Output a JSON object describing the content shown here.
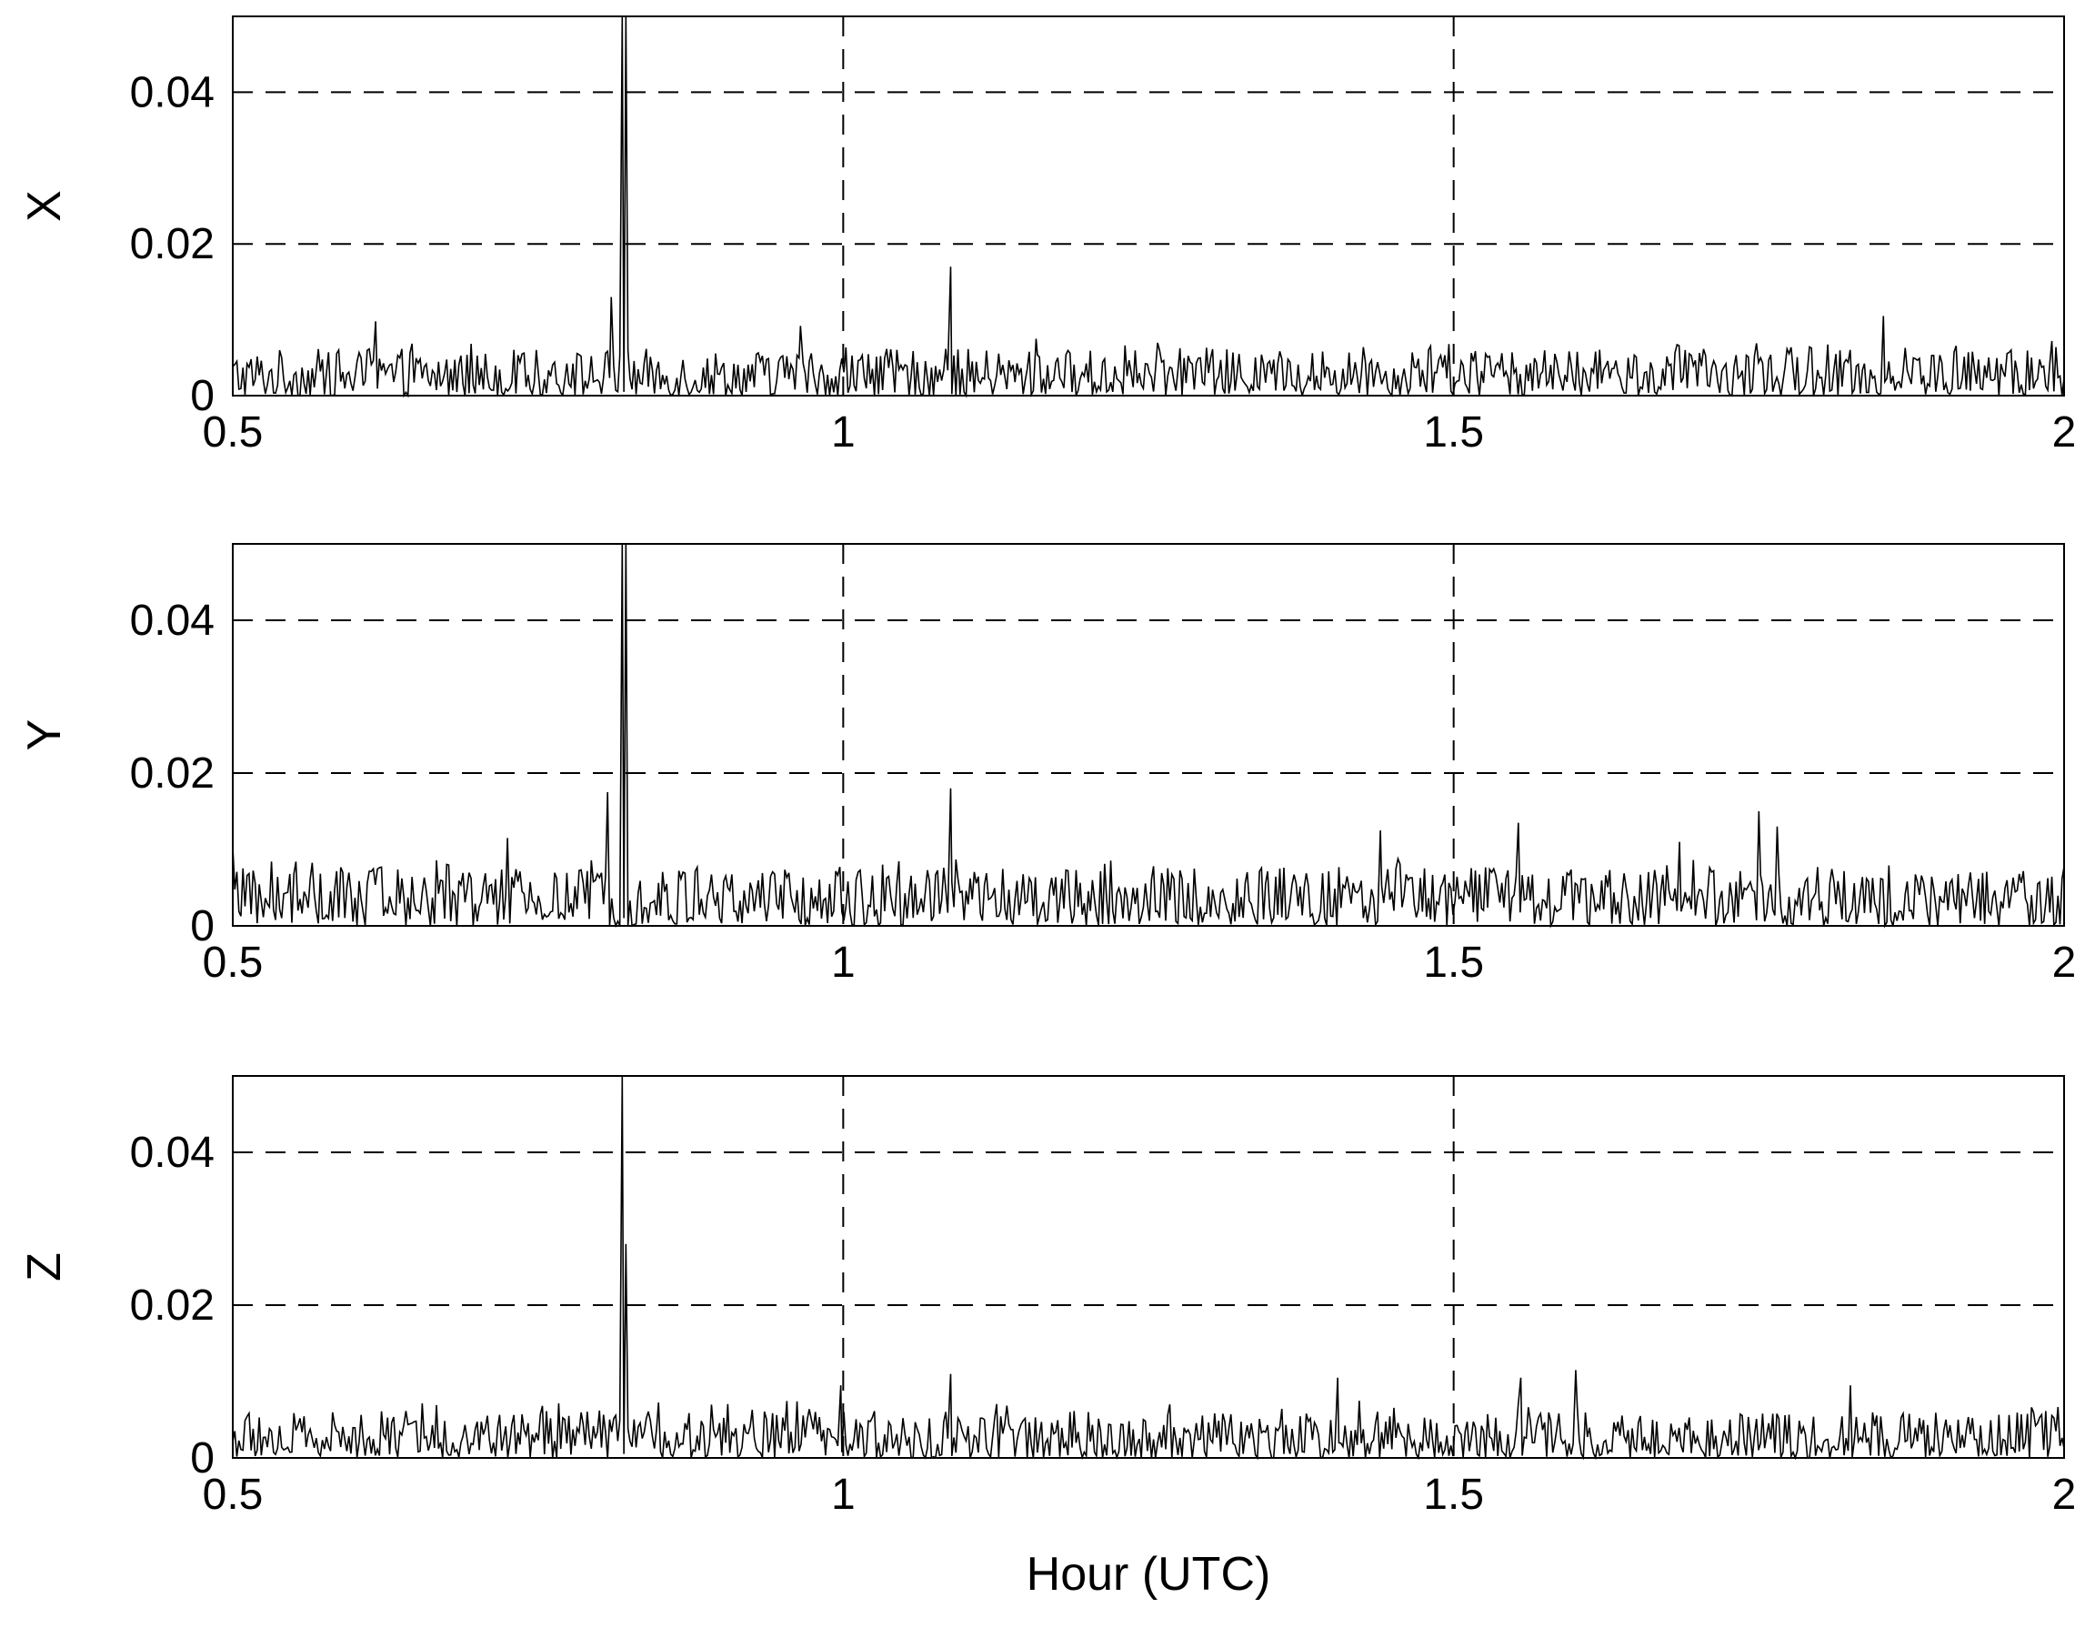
{
  "chart_data": {
    "type": "line",
    "xlabel": "Hour (UTC)",
    "xlim": [
      0.5,
      2
    ],
    "x_ticks": [
      0.5,
      1,
      1.5,
      2
    ],
    "x_tick_labels": [
      "0.5",
      "1",
      "1.5",
      "2"
    ],
    "grid": "dashed",
    "line_color": "#000000",
    "panels": [
      {
        "ylabel": "X",
        "ylim": [
          0,
          0.05
        ],
        "y_ticks": [
          0,
          0.02,
          0.04
        ],
        "y_tick_labels": [
          "0",
          "0.02",
          "0.04"
        ],
        "series": {
          "baseline_mean": 0.0028,
          "baseline_peak": 0.007,
          "spikes": [
            {
              "x": 0.819,
              "y": 0.05
            },
            {
              "x": 0.822,
              "y": 0.05
            },
            {
              "x": 0.81,
              "y": 0.013
            },
            {
              "x": 0.617,
              "y": 0.0098
            },
            {
              "x": 0.965,
              "y": 0.0092
            },
            {
              "x": 1.088,
              "y": 0.017
            },
            {
              "x": 1.158,
              "y": 0.0075
            },
            {
              "x": 1.852,
              "y": 0.0105
            },
            {
              "x": 1.99,
              "y": 0.0072
            }
          ]
        }
      },
      {
        "ylabel": "Y",
        "ylim": [
          0,
          0.05
        ],
        "y_ticks": [
          0,
          0.02,
          0.04
        ],
        "y_tick_labels": [
          "0",
          "0.02",
          "0.04"
        ],
        "series": {
          "baseline_mean": 0.0035,
          "baseline_peak": 0.009,
          "spikes": [
            {
              "x": 0.819,
              "y": 0.05
            },
            {
              "x": 0.822,
              "y": 0.05
            },
            {
              "x": 0.807,
              "y": 0.0175
            },
            {
              "x": 0.5,
              "y": 0.0103
            },
            {
              "x": 0.725,
              "y": 0.0115
            },
            {
              "x": 1.088,
              "y": 0.018
            },
            {
              "x": 1.44,
              "y": 0.0125
            },
            {
              "x": 1.553,
              "y": 0.0135
            },
            {
              "x": 1.685,
              "y": 0.011
            },
            {
              "x": 1.75,
              "y": 0.015
            },
            {
              "x": 1.765,
              "y": 0.013
            }
          ]
        }
      },
      {
        "ylabel": "Z",
        "ylim": [
          0,
          0.05
        ],
        "y_ticks": [
          0,
          0.02,
          0.04
        ],
        "y_tick_labels": [
          "0",
          "0.02",
          "0.04"
        ],
        "series": {
          "baseline_mean": 0.0028,
          "baseline_peak": 0.0075,
          "spikes": [
            {
              "x": 0.819,
              "y": 0.05
            },
            {
              "x": 0.822,
              "y": 0.028
            },
            {
              "x": 0.998,
              "y": 0.0095
            },
            {
              "x": 1.088,
              "y": 0.011
            },
            {
              "x": 1.405,
              "y": 0.0105
            },
            {
              "x": 1.555,
              "y": 0.0105
            },
            {
              "x": 1.6,
              "y": 0.0115
            },
            {
              "x": 1.825,
              "y": 0.0095
            }
          ]
        }
      }
    ]
  }
}
